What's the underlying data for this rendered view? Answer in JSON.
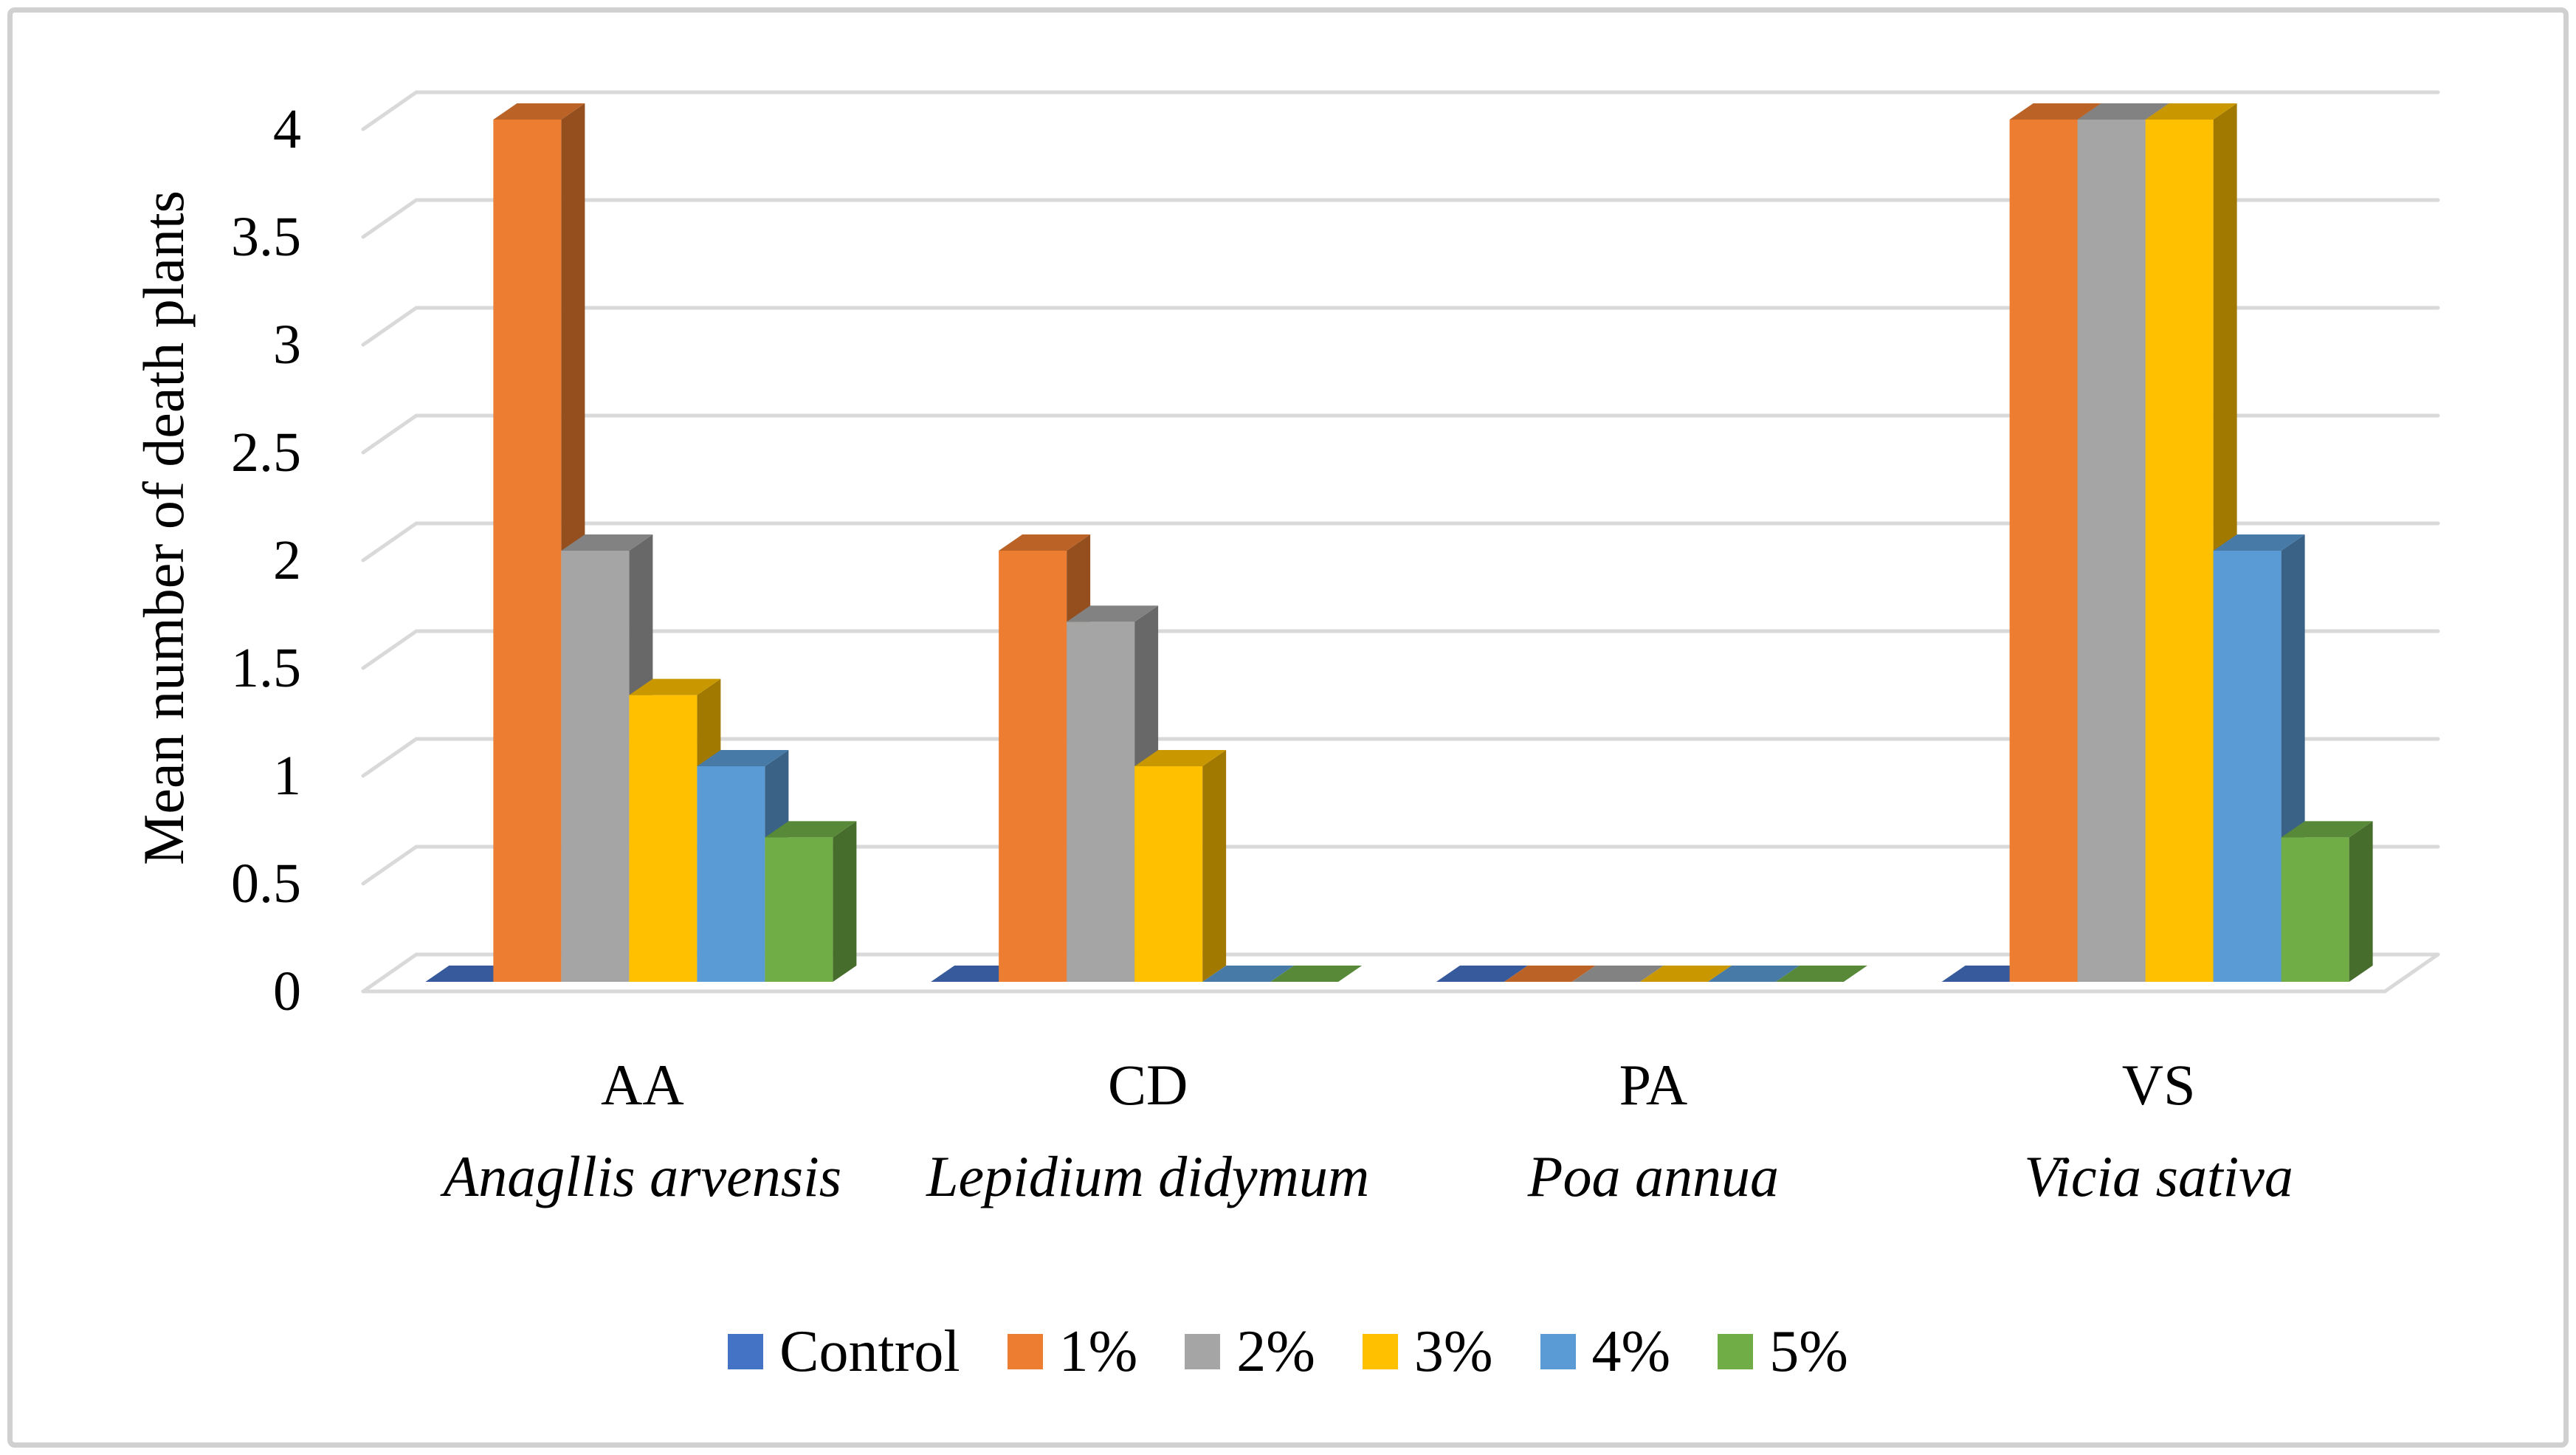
{
  "frame": {
    "border_color": "#D0D0D0"
  },
  "chart_data": {
    "type": "bar",
    "projection": "3d-oblique",
    "title": "",
    "ylabel": "Mean number of death plants",
    "ylim": [
      0,
      4
    ],
    "ytick_step": 0.5,
    "yticks": [
      "0",
      "0.5",
      "1",
      "1.5",
      "2",
      "2.5",
      "3",
      "3.5",
      "4"
    ],
    "grid": true,
    "grid_color": "#D9D9D9",
    "legend_position": "bottom",
    "categories": [
      {
        "code": "AA",
        "species": "Anagllis arvensis"
      },
      {
        "code": "CD",
        "species": "Lepidium didymum"
      },
      {
        "code": "PA",
        "species": "Poa annua"
      },
      {
        "code": "VS",
        "species": "Vicia sativa"
      }
    ],
    "series": [
      {
        "name": "Control",
        "color": "#4472C4",
        "values": [
          0,
          0,
          0,
          0
        ]
      },
      {
        "name": "1%",
        "color": "#ED7D31",
        "values": [
          4,
          2,
          0,
          4
        ]
      },
      {
        "name": "2%",
        "color": "#A5A5A5",
        "values": [
          2,
          1.67,
          0,
          4
        ]
      },
      {
        "name": "3%",
        "color": "#FFC000",
        "values": [
          1.33,
          1,
          0,
          4
        ]
      },
      {
        "name": "4%",
        "color": "#5B9BD5",
        "values": [
          1,
          0,
          0,
          2
        ]
      },
      {
        "name": "5%",
        "color": "#70AD47",
        "values": [
          0.67,
          0,
          0,
          0.67
        ]
      }
    ]
  }
}
